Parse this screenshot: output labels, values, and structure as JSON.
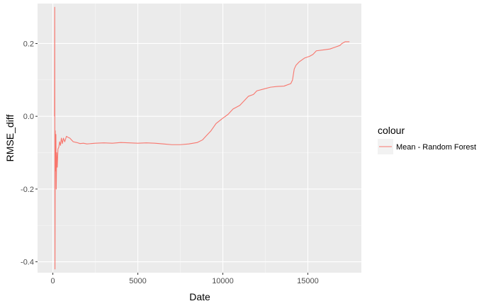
{
  "chart_data": {
    "type": "line",
    "xlabel": "Date",
    "ylabel": "RMSE_diff",
    "xlim": [
      -900,
      18150
    ],
    "ylim": [
      -0.43,
      0.31
    ],
    "x_ticks": [
      0,
      5000,
      10000,
      15000
    ],
    "x_tick_labels": [
      "0",
      "5000",
      "10000",
      "15000"
    ],
    "y_ticks": [
      -0.4,
      -0.2,
      0.0,
      0.2
    ],
    "y_tick_labels": [
      "-0.4",
      "-0.2",
      "0.0",
      "0.2"
    ],
    "x_minor": [
      2500,
      7500,
      12500
    ],
    "y_minor": [
      -0.3,
      -0.1,
      0.1
    ],
    "grid": true,
    "legend": {
      "title": "colour",
      "position": "right",
      "entries": [
        {
          "label": "Mean - Random Forest",
          "color": "#F8766D"
        }
      ]
    },
    "series": [
      {
        "name": "Mean - Random Forest",
        "color": "#F8766D",
        "points": [
          [
            100,
            0.0
          ],
          [
            110,
            0.3
          ],
          [
            125,
            -0.42
          ],
          [
            140,
            -0.04
          ],
          [
            160,
            -0.15
          ],
          [
            180,
            -0.05
          ],
          [
            200,
            -0.2
          ],
          [
            225,
            -0.1
          ],
          [
            260,
            -0.14
          ],
          [
            300,
            -0.09
          ],
          [
            350,
            -0.085
          ],
          [
            400,
            -0.07
          ],
          [
            450,
            -0.08
          ],
          [
            500,
            -0.06
          ],
          [
            560,
            -0.075
          ],
          [
            620,
            -0.06
          ],
          [
            700,
            -0.07
          ],
          [
            800,
            -0.055
          ],
          [
            900,
            -0.058
          ],
          [
            1000,
            -0.06
          ],
          [
            1100,
            -0.065
          ],
          [
            1200,
            -0.07
          ],
          [
            1400,
            -0.072
          ],
          [
            1600,
            -0.075
          ],
          [
            1800,
            -0.074
          ],
          [
            2000,
            -0.076
          ],
          [
            2500,
            -0.074
          ],
          [
            3000,
            -0.073
          ],
          [
            3500,
            -0.074
          ],
          [
            4000,
            -0.072
          ],
          [
            4500,
            -0.073
          ],
          [
            5000,
            -0.074
          ],
          [
            5500,
            -0.073
          ],
          [
            6000,
            -0.074
          ],
          [
            6500,
            -0.076
          ],
          [
            7000,
            -0.078
          ],
          [
            7500,
            -0.078
          ],
          [
            8000,
            -0.076
          ],
          [
            8500,
            -0.072
          ],
          [
            8800,
            -0.065
          ],
          [
            9000,
            -0.055
          ],
          [
            9300,
            -0.04
          ],
          [
            9600,
            -0.02
          ],
          [
            10000,
            -0.005
          ],
          [
            10300,
            0.005
          ],
          [
            10600,
            0.02
          ],
          [
            11000,
            0.03
          ],
          [
            11300,
            0.045
          ],
          [
            11500,
            0.055
          ],
          [
            11800,
            0.06
          ],
          [
            12000,
            0.07
          ],
          [
            12400,
            0.075
          ],
          [
            12800,
            0.08
          ],
          [
            13200,
            0.082
          ],
          [
            13600,
            0.083
          ],
          [
            14000,
            0.09
          ],
          [
            14100,
            0.1
          ],
          [
            14200,
            0.13
          ],
          [
            14300,
            0.14
          ],
          [
            14500,
            0.15
          ],
          [
            14800,
            0.16
          ],
          [
            15100,
            0.165
          ],
          [
            15300,
            0.17
          ],
          [
            15500,
            0.18
          ],
          [
            16000,
            0.183
          ],
          [
            16300,
            0.185
          ],
          [
            16600,
            0.19
          ],
          [
            16900,
            0.195
          ],
          [
            17000,
            0.2
          ],
          [
            17200,
            0.205
          ],
          [
            17450,
            0.205
          ]
        ]
      }
    ]
  }
}
